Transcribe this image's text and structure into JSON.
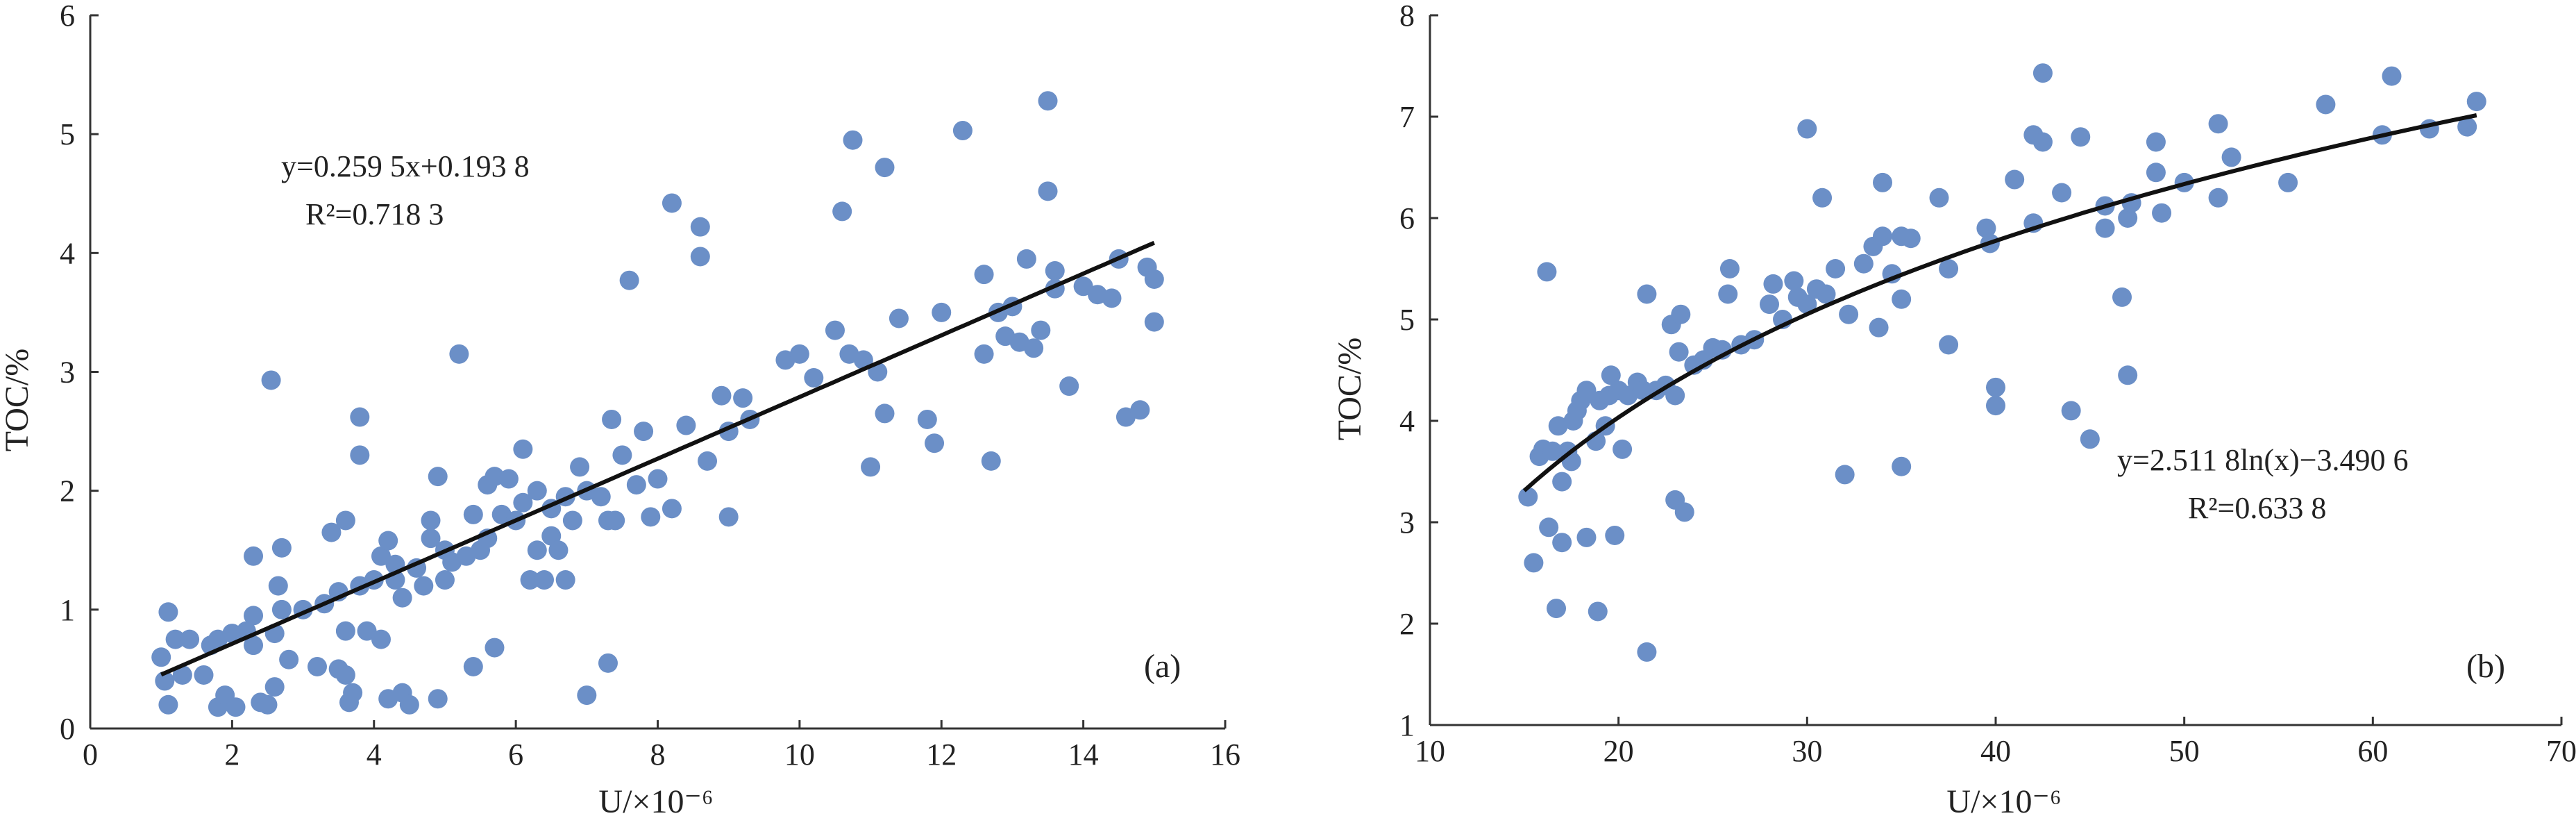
{
  "chart_data": [
    {
      "type": "scatter",
      "panel_label": "(a)",
      "xlabel": "U/×10⁻⁶",
      "ylabel": "TOC/%",
      "xlim": [
        0,
        16
      ],
      "ylim": [
        0,
        6
      ],
      "x_ticks": [
        0,
        2,
        4,
        6,
        8,
        10,
        12,
        14,
        16
      ],
      "y_ticks": [
        0,
        1,
        2,
        3,
        4,
        5,
        6
      ],
      "equation": "y=0.259 5x+0.193 8",
      "r_squared": "R²=0.718 3",
      "fit": {
        "kind": "linear",
        "slope": 0.2595,
        "intercept": 0.1938,
        "x_range": [
          1.0,
          15.0
        ]
      },
      "points": [
        [
          1.0,
          0.6
        ],
        [
          1.05,
          0.4
        ],
        [
          1.1,
          0.2
        ],
        [
          1.1,
          0.98
        ],
        [
          1.2,
          0.75
        ],
        [
          1.3,
          0.45
        ],
        [
          1.4,
          0.75
        ],
        [
          1.6,
          0.45
        ],
        [
          1.7,
          0.7
        ],
        [
          1.8,
          0.18
        ],
        [
          1.8,
          0.75
        ],
        [
          1.9,
          0.28
        ],
        [
          2.0,
          0.8
        ],
        [
          2.05,
          0.18
        ],
        [
          2.2,
          0.82
        ],
        [
          2.3,
          0.7
        ],
        [
          2.3,
          1.45
        ],
        [
          2.3,
          0.95
        ],
        [
          2.4,
          0.22
        ],
        [
          2.5,
          0.2
        ],
        [
          2.55,
          2.93
        ],
        [
          2.6,
          0.8
        ],
        [
          2.6,
          0.35
        ],
        [
          2.65,
          1.2
        ],
        [
          2.7,
          1.0
        ],
        [
          2.7,
          1.52
        ],
        [
          2.8,
          0.58
        ],
        [
          3.0,
          1.0
        ],
        [
          3.2,
          0.52
        ],
        [
          3.3,
          1.05
        ],
        [
          3.4,
          1.65
        ],
        [
          3.5,
          1.15
        ],
        [
          3.5,
          0.5
        ],
        [
          3.6,
          0.82
        ],
        [
          3.6,
          1.75
        ],
        [
          3.6,
          0.45
        ],
        [
          3.65,
          0.22
        ],
        [
          3.7,
          0.3
        ],
        [
          3.8,
          1.2
        ],
        [
          3.8,
          2.3
        ],
        [
          3.8,
          2.62
        ],
        [
          3.9,
          0.82
        ],
        [
          4.0,
          1.25
        ],
        [
          4.1,
          1.45
        ],
        [
          4.1,
          0.75
        ],
        [
          4.2,
          1.58
        ],
        [
          4.2,
          0.25
        ],
        [
          4.3,
          1.25
        ],
        [
          4.3,
          1.38
        ],
        [
          4.4,
          0.3
        ],
        [
          4.4,
          1.1
        ],
        [
          4.5,
          0.2
        ],
        [
          4.6,
          1.35
        ],
        [
          4.7,
          1.2
        ],
        [
          4.8,
          1.6
        ],
        [
          4.8,
          1.75
        ],
        [
          4.9,
          2.12
        ],
        [
          4.9,
          0.25
        ],
        [
          5.0,
          1.25
        ],
        [
          5.0,
          1.5
        ],
        [
          5.1,
          1.4
        ],
        [
          5.2,
          3.15
        ],
        [
          5.3,
          1.45
        ],
        [
          5.4,
          1.8
        ],
        [
          5.4,
          0.52
        ],
        [
          5.5,
          1.5
        ],
        [
          5.6,
          1.6
        ],
        [
          5.6,
          2.05
        ],
        [
          5.7,
          2.12
        ],
        [
          5.7,
          0.68
        ],
        [
          5.8,
          1.8
        ],
        [
          5.9,
          2.1
        ],
        [
          6.0,
          1.75
        ],
        [
          6.1,
          1.9
        ],
        [
          6.1,
          2.35
        ],
        [
          6.2,
          1.25
        ],
        [
          6.3,
          1.5
        ],
        [
          6.3,
          2.0
        ],
        [
          6.4,
          1.25
        ],
        [
          6.5,
          1.62
        ],
        [
          6.5,
          1.85
        ],
        [
          6.6,
          1.5
        ],
        [
          6.7,
          1.95
        ],
        [
          6.7,
          1.25
        ],
        [
          6.8,
          1.75
        ],
        [
          6.9,
          2.2
        ],
        [
          7.0,
          0.28
        ],
        [
          7.0,
          2.0
        ],
        [
          7.2,
          1.95
        ],
        [
          7.3,
          1.75
        ],
        [
          7.3,
          0.55
        ],
        [
          7.35,
          2.6
        ],
        [
          7.4,
          1.75
        ],
        [
          7.5,
          2.3
        ],
        [
          7.6,
          3.77
        ],
        [
          7.7,
          2.05
        ],
        [
          7.8,
          2.5
        ],
        [
          7.9,
          1.78
        ],
        [
          8.0,
          2.1
        ],
        [
          8.2,
          1.85
        ],
        [
          8.2,
          4.42
        ],
        [
          8.4,
          2.55
        ],
        [
          8.6,
          4.22
        ],
        [
          8.6,
          3.97
        ],
        [
          8.7,
          2.25
        ],
        [
          8.9,
          2.8
        ],
        [
          9.0,
          1.78
        ],
        [
          9.0,
          2.5
        ],
        [
          9.2,
          2.78
        ],
        [
          9.3,
          2.6
        ],
        [
          9.8,
          3.1
        ],
        [
          10.0,
          3.15
        ],
        [
          10.2,
          2.95
        ],
        [
          10.5,
          3.35
        ],
        [
          10.6,
          4.35
        ],
        [
          10.7,
          3.15
        ],
        [
          10.75,
          4.95
        ],
        [
          10.9,
          3.1
        ],
        [
          11.0,
          2.2
        ],
        [
          11.1,
          3.0
        ],
        [
          11.2,
          2.65
        ],
        [
          11.2,
          4.72
        ],
        [
          11.4,
          3.45
        ],
        [
          11.8,
          2.6
        ],
        [
          11.9,
          2.4
        ],
        [
          12.0,
          3.5
        ],
        [
          12.3,
          5.03
        ],
        [
          12.6,
          3.15
        ],
        [
          12.6,
          3.82
        ],
        [
          12.7,
          2.25
        ],
        [
          12.8,
          3.5
        ],
        [
          12.9,
          3.3
        ],
        [
          13.0,
          3.55
        ],
        [
          13.1,
          3.25
        ],
        [
          13.2,
          3.95
        ],
        [
          13.3,
          3.2
        ],
        [
          13.4,
          3.35
        ],
        [
          13.5,
          4.52
        ],
        [
          13.5,
          5.28
        ],
        [
          13.6,
          3.85
        ],
        [
          13.6,
          3.7
        ],
        [
          13.8,
          2.88
        ],
        [
          14.0,
          3.72
        ],
        [
          14.2,
          3.65
        ],
        [
          14.4,
          3.62
        ],
        [
          14.5,
          3.95
        ],
        [
          14.6,
          2.62
        ],
        [
          14.8,
          2.68
        ],
        [
          14.9,
          3.88
        ],
        [
          15.0,
          3.42
        ],
        [
          15.0,
          3.78
        ]
      ]
    },
    {
      "type": "scatter",
      "panel_label": "(b)",
      "xlabel": "U/×10⁻⁶",
      "ylabel": "TOC/%",
      "xlim": [
        10,
        70
      ],
      "ylim": [
        1,
        8
      ],
      "x_ticks": [
        10,
        20,
        30,
        40,
        50,
        60,
        70
      ],
      "y_ticks": [
        1,
        2,
        3,
        4,
        5,
        6,
        7,
        8
      ],
      "equation": "y=2.511 8ln(x)−3.490 6",
      "r_squared": "R²=0.633 8",
      "fit": {
        "kind": "log",
        "a": 2.5118,
        "b": -3.4906,
        "x_range": [
          15,
          65.5
        ]
      },
      "points": [
        [
          15.2,
          3.25
        ],
        [
          15.5,
          2.6
        ],
        [
          15.8,
          3.65
        ],
        [
          16.0,
          3.72
        ],
        [
          16.2,
          5.47
        ],
        [
          16.3,
          2.95
        ],
        [
          16.5,
          3.7
        ],
        [
          16.7,
          2.15
        ],
        [
          16.8,
          3.95
        ],
        [
          17.0,
          3.4
        ],
        [
          17.0,
          2.8
        ],
        [
          17.3,
          3.7
        ],
        [
          17.5,
          3.6
        ],
        [
          17.6,
          4.0
        ],
        [
          17.8,
          4.1
        ],
        [
          18.0,
          4.2
        ],
        [
          18.3,
          4.3
        ],
        [
          18.3,
          2.85
        ],
        [
          18.8,
          3.8
        ],
        [
          18.9,
          2.12
        ],
        [
          19.0,
          4.2
        ],
        [
          19.3,
          3.95
        ],
        [
          19.5,
          4.25
        ],
        [
          19.6,
          4.45
        ],
        [
          19.8,
          2.87
        ],
        [
          20.0,
          4.3
        ],
        [
          20.2,
          3.72
        ],
        [
          20.5,
          4.25
        ],
        [
          21.0,
          4.38
        ],
        [
          21.3,
          4.3
        ],
        [
          21.5,
          5.25
        ],
        [
          21.5,
          1.72
        ],
        [
          22.0,
          4.3
        ],
        [
          22.5,
          4.35
        ],
        [
          22.8,
          4.95
        ],
        [
          23.0,
          4.25
        ],
        [
          23.0,
          3.22
        ],
        [
          23.2,
          4.68
        ],
        [
          23.3,
          5.05
        ],
        [
          23.5,
          3.1
        ],
        [
          24.0,
          4.55
        ],
        [
          24.5,
          4.6
        ],
        [
          25.0,
          4.72
        ],
        [
          25.5,
          4.7
        ],
        [
          25.8,
          5.25
        ],
        [
          25.9,
          5.5
        ],
        [
          26.5,
          4.75
        ],
        [
          27.2,
          4.8
        ],
        [
          28.0,
          5.15
        ],
        [
          28.2,
          5.35
        ],
        [
          28.7,
          5.0
        ],
        [
          29.3,
          5.38
        ],
        [
          29.5,
          5.22
        ],
        [
          30.0,
          5.15
        ],
        [
          30.0,
          6.88
        ],
        [
          30.5,
          5.3
        ],
        [
          30.8,
          6.2
        ],
        [
          31.0,
          5.25
        ],
        [
          31.5,
          5.5
        ],
        [
          32.0,
          3.47
        ],
        [
          32.2,
          5.05
        ],
        [
          33.0,
          5.55
        ],
        [
          33.5,
          5.72
        ],
        [
          33.8,
          4.92
        ],
        [
          34.0,
          6.35
        ],
        [
          34.0,
          5.82
        ],
        [
          34.5,
          5.45
        ],
        [
          35.0,
          5.82
        ],
        [
          35.0,
          5.2
        ],
        [
          35.0,
          3.55
        ],
        [
          35.5,
          5.8
        ],
        [
          37.0,
          6.2
        ],
        [
          37.5,
          5.5
        ],
        [
          37.5,
          4.75
        ],
        [
          39.5,
          5.9
        ],
        [
          39.7,
          5.75
        ],
        [
          40.0,
          4.15
        ],
        [
          40.0,
          4.33
        ],
        [
          41.0,
          6.38
        ],
        [
          42.0,
          5.95
        ],
        [
          42.0,
          6.82
        ],
        [
          42.5,
          7.43
        ],
        [
          42.5,
          6.75
        ],
        [
          43.5,
          6.25
        ],
        [
          44.0,
          4.1
        ],
        [
          44.5,
          6.8
        ],
        [
          45.0,
          3.82
        ],
        [
          45.8,
          6.12
        ],
        [
          45.8,
          5.9
        ],
        [
          46.7,
          5.22
        ],
        [
          47.0,
          6.0
        ],
        [
          47.0,
          4.45
        ],
        [
          47.2,
          6.15
        ],
        [
          48.5,
          6.75
        ],
        [
          48.5,
          6.45
        ],
        [
          48.8,
          6.05
        ],
        [
          50.0,
          6.35
        ],
        [
          51.8,
          6.93
        ],
        [
          51.8,
          6.2
        ],
        [
          52.5,
          6.6
        ],
        [
          55.5,
          6.35
        ],
        [
          57.5,
          7.12
        ],
        [
          60.5,
          6.82
        ],
        [
          61.0,
          7.4
        ],
        [
          63.0,
          6.88
        ],
        [
          65.0,
          6.9
        ],
        [
          65.5,
          7.15
        ]
      ]
    }
  ]
}
